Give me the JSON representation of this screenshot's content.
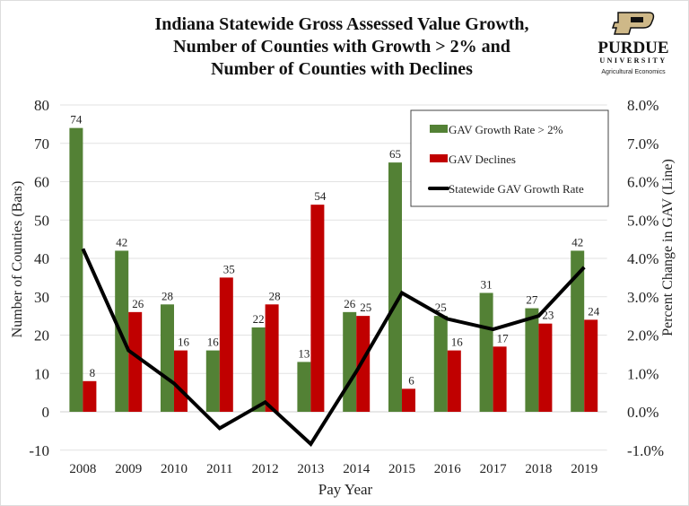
{
  "logo": {
    "name": "PURDUE",
    "sub": "UNIVERSITY",
    "dept": "Agricultural Economics",
    "color": "#CEB888"
  },
  "chart_data": {
    "type": "bar",
    "title_lines": [
      "Indiana Statewide Gross Assessed Value Growth,",
      "Number of Counties with Growth > 2% and",
      "Number of Counties with Declines"
    ],
    "xlabel": "Pay Year",
    "ylabel": "Number of Counties (Bars)",
    "y2label": "Percent Change in GAV (Line)",
    "categories": [
      "2008",
      "2009",
      "2010",
      "2011",
      "2012",
      "2013",
      "2014",
      "2015",
      "2016",
      "2017",
      "2018",
      "2019"
    ],
    "ylim": [
      -10,
      80
    ],
    "yticks": [
      -10,
      0,
      10,
      20,
      30,
      40,
      50,
      60,
      70,
      80
    ],
    "y2lim": [
      -1.0,
      8.0
    ],
    "y2ticks": [
      "-1.0%",
      "0.0%",
      "1.0%",
      "2.0%",
      "3.0%",
      "4.0%",
      "5.0%",
      "6.0%",
      "7.0%",
      "8.0%"
    ],
    "grid": true,
    "legend_position": "top-right",
    "series": [
      {
        "name": "GAV Growth Rate > 2%",
        "type": "bar",
        "color": "#538135",
        "values": [
          74,
          42,
          28,
          16,
          22,
          13,
          26,
          65,
          25,
          31,
          27,
          42
        ]
      },
      {
        "name": "GAV Declines",
        "type": "bar",
        "color": "#C00000",
        "values": [
          8,
          26,
          16,
          35,
          28,
          54,
          25,
          6,
          16,
          17,
          23,
          24
        ]
      },
      {
        "name": "Statewide GAV Growth Rate",
        "type": "line",
        "axis": "right",
        "color": "#000000",
        "values": [
          4.25,
          1.6,
          0.74,
          -0.43,
          0.25,
          -0.84,
          1.05,
          3.1,
          2.42,
          2.15,
          2.5,
          3.77
        ]
      }
    ]
  }
}
